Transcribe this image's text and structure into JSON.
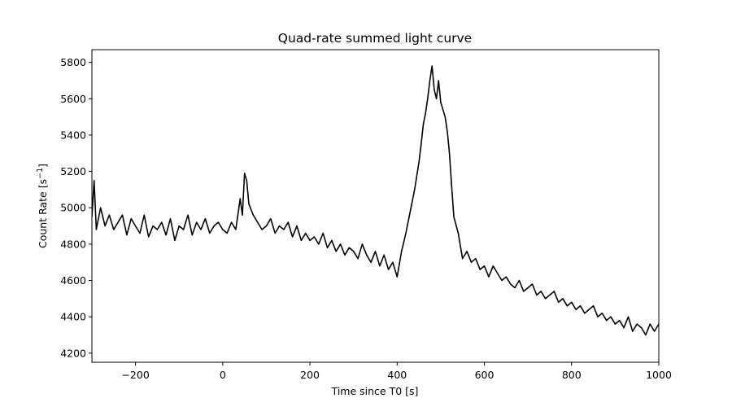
{
  "chart_data": {
    "type": "line",
    "title": "Quad-rate summed light curve",
    "xlabel": "Time since T0 [s]",
    "ylabel": "Count Rate [s$^{-1}$]",
    "ylabel_parts": {
      "prefix": "Count Rate [s",
      "sup": "−1",
      "suffix": "]"
    },
    "xlim": [
      -300,
      1000
    ],
    "ylim": [
      4150,
      5870
    ],
    "xticks": [
      -200,
      0,
      200,
      400,
      600,
      800,
      1000
    ],
    "xtick_labels": [
      "−200",
      "0",
      "200",
      "400",
      "600",
      "800",
      "1000"
    ],
    "yticks": [
      4200,
      4400,
      4600,
      4800,
      5000,
      5200,
      5400,
      5600,
      5800
    ],
    "ytick_labels": [
      "4200",
      "4400",
      "4600",
      "4800",
      "5000",
      "5200",
      "5400",
      "5600",
      "5800"
    ],
    "grid": false,
    "series": [
      {
        "color": "#000000",
        "x": [
          -300,
          -295,
          -290,
          -280,
          -270,
          -260,
          -250,
          -240,
          -230,
          -220,
          -210,
          -200,
          -190,
          -180,
          -170,
          -160,
          -150,
          -140,
          -130,
          -120,
          -110,
          -100,
          -90,
          -80,
          -70,
          -60,
          -50,
          -40,
          -30,
          -20,
          -10,
          0,
          10,
          20,
          30,
          40,
          45,
          50,
          55,
          60,
          70,
          80,
          90,
          100,
          110,
          120,
          130,
          140,
          150,
          160,
          170,
          180,
          190,
          200,
          210,
          220,
          230,
          240,
          250,
          260,
          270,
          280,
          290,
          300,
          310,
          320,
          330,
          340,
          350,
          360,
          370,
          380,
          390,
          400,
          410,
          420,
          430,
          440,
          450,
          455,
          460,
          465,
          470,
          475,
          480,
          485,
          490,
          495,
          500,
          505,
          510,
          515,
          520,
          525,
          530,
          540,
          550,
          560,
          570,
          580,
          590,
          600,
          610,
          620,
          630,
          640,
          650,
          660,
          670,
          680,
          690,
          700,
          710,
          720,
          730,
          740,
          750,
          760,
          770,
          780,
          790,
          800,
          810,
          820,
          830,
          840,
          850,
          860,
          870,
          880,
          890,
          900,
          910,
          920,
          930,
          940,
          950,
          960,
          970,
          980,
          990,
          1000
        ],
        "values": [
          4950,
          5150,
          4880,
          5000,
          4900,
          4960,
          4880,
          4920,
          4960,
          4850,
          4940,
          4900,
          4860,
          4960,
          4840,
          4900,
          4880,
          4920,
          4850,
          4940,
          4820,
          4900,
          4880,
          4960,
          4850,
          4920,
          4880,
          4940,
          4860,
          4900,
          4920,
          4880,
          4860,
          4920,
          4880,
          5050,
          4960,
          5190,
          5150,
          5020,
          4960,
          4920,
          4880,
          4900,
          4940,
          4860,
          4900,
          4880,
          4920,
          4840,
          4900,
          4820,
          4860,
          4820,
          4840,
          4800,
          4860,
          4780,
          4820,
          4760,
          4800,
          4740,
          4780,
          4760,
          4720,
          4800,
          4740,
          4700,
          4760,
          4680,
          4740,
          4660,
          4700,
          4620,
          4760,
          4860,
          4980,
          5100,
          5250,
          5350,
          5460,
          5520,
          5600,
          5700,
          5780,
          5650,
          5600,
          5700,
          5580,
          5540,
          5500,
          5420,
          5300,
          5120,
          4950,
          4860,
          4720,
          4760,
          4700,
          4720,
          4660,
          4680,
          4620,
          4680,
          4640,
          4600,
          4620,
          4580,
          4560,
          4600,
          4540,
          4560,
          4580,
          4520,
          4540,
          4500,
          4520,
          4540,
          4480,
          4500,
          4460,
          4480,
          4440,
          4460,
          4420,
          4440,
          4460,
          4400,
          4420,
          4380,
          4400,
          4360,
          4380,
          4340,
          4400,
          4320,
          4360,
          4340,
          4300,
          4360,
          4320,
          4360
        ]
      }
    ]
  }
}
